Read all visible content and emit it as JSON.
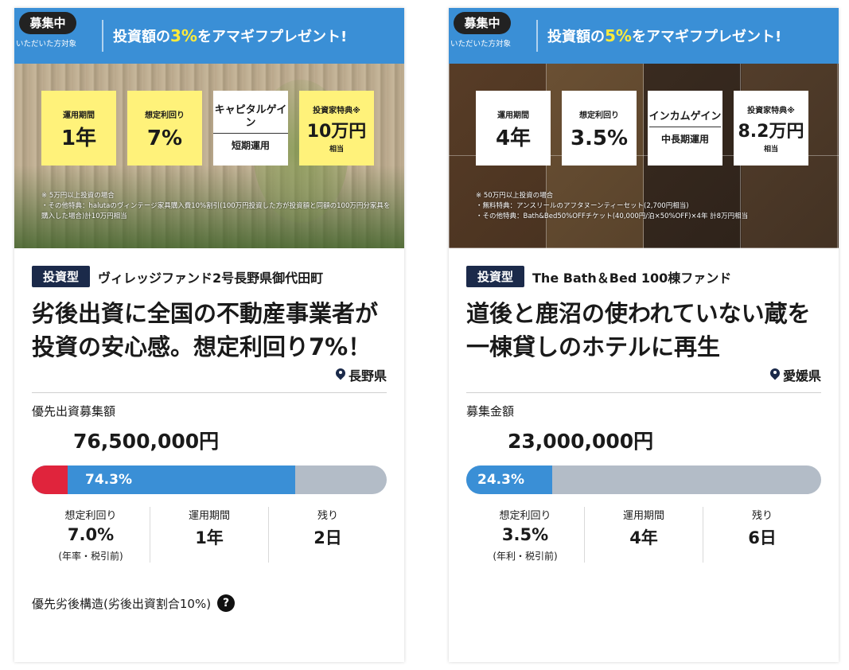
{
  "cards": [
    {
      "banner": {
        "badge": "募集中",
        "badge_sub": "いただいた方対象",
        "text_prefix": "投資額の",
        "highlight": "3%",
        "text_suffix": "をアマギフプレゼント!"
      },
      "stats": {
        "period_label": "運用期間",
        "period_value": "1年",
        "yield_label": "想定利回り",
        "yield_value": "7%",
        "gain_label": "キャピタルゲイン",
        "gain_term": "短期運用",
        "perk_label": "投資家特典※",
        "perk_value": "10万円",
        "perk_note": "相当"
      },
      "footnote": [
        "※ 5万円以上投資の場合",
        "・その他特典：halutaのヴィンテージ家具購入費10%割引(100万円投資した方が投資額と同額の100万円分家具を購入した場合)計10万円相当"
      ],
      "type_badge": "投資型",
      "fund_name": "ヴィレッジファンド2号長野県御代田町",
      "headline": "劣後出資に全国の不動産事業者が投資の安心感。想定利回り7%！",
      "location": "長野県",
      "amount_label": "優先出資募集額",
      "amount_value": "76,500,000円",
      "progress": {
        "percent_label": "74.3%",
        "fill": 0.743,
        "subordinate_fill": 0.1
      },
      "metrics": [
        {
          "label": "想定利回り",
          "value": "7.0%",
          "sub": "(年率・税引前)"
        },
        {
          "label": "運用期間",
          "value": "1年",
          "sub": ""
        },
        {
          "label": "残り",
          "value": "2日",
          "sub": ""
        }
      ],
      "structure": "優先劣後構造(劣後出資割合10%)",
      "help_icon": "?"
    },
    {
      "banner": {
        "badge": "募集中",
        "badge_sub": "いただいた方対象",
        "text_prefix": "投資額の",
        "highlight": "5%",
        "text_suffix": "をアマギフプレゼント!"
      },
      "stats": {
        "period_label": "運用期間",
        "period_value": "4年",
        "yield_label": "想定利回り",
        "yield_value": "3.5%",
        "gain_label": "インカムゲイン",
        "gain_term": "中長期運用",
        "perk_label": "投資家特典※",
        "perk_value": "8.2万円",
        "perk_note": "相当"
      },
      "footnote": [
        "※ 50万円以上投資の場合",
        "・無料特典：アンスリールのアフタヌーンティーセット(2,700円相当)",
        "・その他特典：Bath&Bed50%OFFチケット(40,000円/泊×50%OFF)×4年 計8万円相当"
      ],
      "type_badge": "投資型",
      "fund_name": "The Bath＆Bed 100棟ファンド",
      "headline": "道後と鹿沼の使われていない蔵を一棟貸しのホテルに再生",
      "location": "愛媛県",
      "amount_label": "募集金額",
      "amount_value": "23,000,000円",
      "progress": {
        "percent_label": "24.3%",
        "fill": 0.243
      },
      "metrics": [
        {
          "label": "想定利回り",
          "value": "3.5%",
          "sub": "(年利・税引前)"
        },
        {
          "label": "運用期間",
          "value": "4年",
          "sub": ""
        },
        {
          "label": "残り",
          "value": "6日",
          "sub": ""
        }
      ],
      "colors": {
        "accent": "#3a8fd6",
        "badge": "#1b2a4a",
        "subordinate": "#e0243c",
        "stat_box": "#fff27a"
      }
    }
  ]
}
